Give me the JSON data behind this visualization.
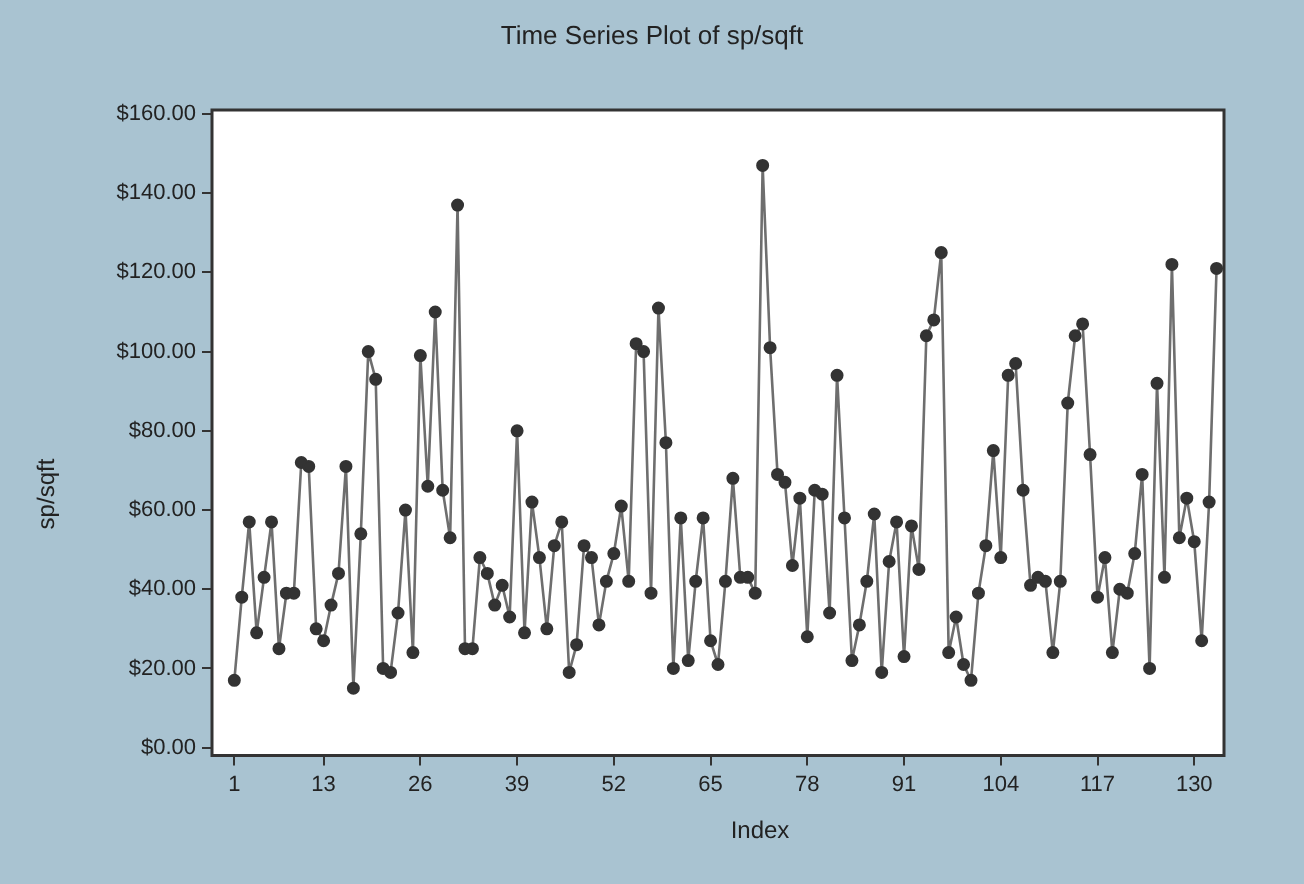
{
  "chart_data": {
    "type": "line",
    "title": "Time Series Plot of sp/sqft",
    "xlabel": "Index",
    "ylabel": "sp/sqft",
    "x": [
      1,
      2,
      3,
      4,
      5,
      6,
      7,
      8,
      9,
      10,
      11,
      12,
      13,
      14,
      15,
      16,
      17,
      18,
      19,
      20,
      21,
      22,
      23,
      24,
      25,
      26,
      27,
      28,
      29,
      30,
      31,
      32,
      33,
      34,
      35,
      36,
      37,
      38,
      39,
      40,
      41,
      42,
      43,
      44,
      45,
      46,
      47,
      48,
      49,
      50,
      51,
      52,
      53,
      54,
      55,
      56,
      57,
      58,
      59,
      60,
      61,
      62,
      63,
      64,
      65,
      66,
      67,
      68,
      69,
      70,
      71,
      72,
      73,
      74,
      75,
      76,
      77,
      78,
      79,
      80,
      81,
      82,
      83,
      84,
      85,
      86,
      87,
      88,
      89,
      90,
      91,
      92,
      93,
      94,
      95,
      96,
      97,
      98,
      99,
      100,
      101,
      102,
      103,
      104,
      105,
      106,
      107,
      108,
      109,
      110,
      111,
      112,
      113,
      114,
      115,
      116,
      117,
      118,
      119,
      120,
      121,
      122,
      123,
      124,
      125,
      126,
      127,
      128,
      129,
      130,
      131,
      132,
      133
    ],
    "series": [
      {
        "color": "#6e6e6e",
        "values": [
          17,
          38,
          57,
          29,
          43,
          57,
          25,
          39,
          39,
          72,
          71,
          30,
          27,
          36,
          44,
          71,
          15,
          54,
          100,
          93,
          20,
          19,
          34,
          60,
          24,
          99,
          66,
          110,
          65,
          53,
          137,
          25,
          25,
          48,
          44,
          36,
          41,
          33,
          80,
          29,
          62,
          48,
          30,
          51,
          57,
          19,
          26,
          51,
          48,
          31,
          42,
          49,
          61,
          42,
          102,
          100,
          39,
          111,
          77,
          20,
          58,
          22,
          42,
          58,
          27,
          21,
          42,
          68,
          43,
          43,
          39,
          147,
          101,
          69,
          67,
          46,
          63,
          28,
          65,
          64,
          34,
          94,
          58,
          22,
          31,
          42,
          59,
          19,
          47,
          57,
          23,
          56,
          45,
          104,
          108,
          125,
          24,
          33,
          21,
          17,
          39,
          51,
          75,
          48,
          94,
          97,
          65,
          41,
          43,
          42,
          24,
          42,
          87,
          104,
          107,
          74,
          38,
          48,
          24,
          40,
          39,
          49,
          69,
          20,
          92,
          43,
          122,
          53,
          63,
          52,
          27,
          62,
          121
        ]
      }
    ],
    "xlim": [
      -2,
      134
    ],
    "xticks": [
      1,
      13,
      26,
      39,
      52,
      65,
      78,
      91,
      104,
      117,
      130
    ],
    "ylim": [
      -2,
      161
    ],
    "yticks": [
      {
        "value": 0,
        "label": "$0.00"
      },
      {
        "value": 20,
        "label": "$20.00"
      },
      {
        "value": 40,
        "label": "$40.00"
      },
      {
        "value": 60,
        "label": "$60.00"
      },
      {
        "value": 80,
        "label": "$80.00"
      },
      {
        "value": 100,
        "label": "$100.00"
      },
      {
        "value": 120,
        "label": "$120.00"
      },
      {
        "value": 140,
        "label": "$140.00"
      },
      {
        "value": 160,
        "label": "$160.00"
      }
    ],
    "grid": false,
    "legend": false,
    "marker": "circle",
    "line_style": "solid"
  }
}
